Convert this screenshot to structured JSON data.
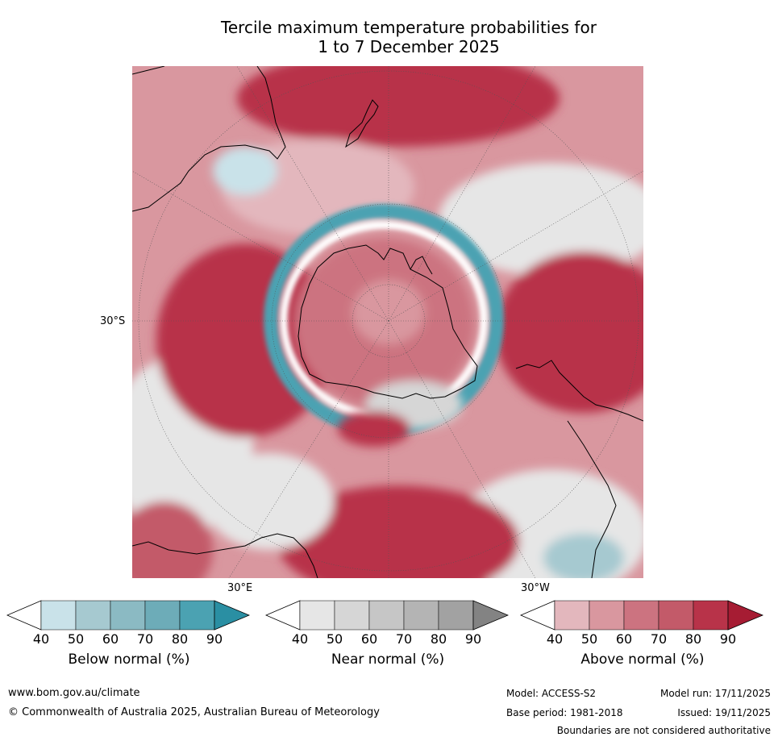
{
  "title_line1": "Tercile maximum temperature probabilities for",
  "title_line2": "1 to 7 December 2025",
  "map": {
    "lat_label": "30°S",
    "lon_label_east": "30°E",
    "lon_label_west": "30°W",
    "colors": {
      "below": [
        "#ffffff",
        "#c9e2e9",
        "#a6c9d0",
        "#8bbac3",
        "#6dacb8",
        "#4ba2b2",
        "#2a8fa3"
      ],
      "near": [
        "#ffffff",
        "#e6e6e6",
        "#d6d6d6",
        "#c6c6c6",
        "#b4b4b4",
        "#a2a2a2",
        "#838383"
      ],
      "above": [
        "#ffffff",
        "#e3b7bd",
        "#d9979f",
        "#cc7380",
        "#c35a69",
        "#b83349",
        "#a61c33"
      ],
      "land_outline": "#000000"
    }
  },
  "colorbars": [
    {
      "name": "below",
      "label": "Below normal (%)",
      "ticks": [
        "40",
        "50",
        "60",
        "70",
        "80",
        "90"
      ],
      "colors": [
        "#ffffff",
        "#c9e2e9",
        "#a6c9d0",
        "#8bbac3",
        "#6dacb8",
        "#4ba2b2",
        "#2a8fa3"
      ]
    },
    {
      "name": "near",
      "label": "Near normal (%)",
      "ticks": [
        "40",
        "50",
        "60",
        "70",
        "80",
        "90"
      ],
      "colors": [
        "#ffffff",
        "#e6e6e6",
        "#d6d6d6",
        "#c6c6c6",
        "#b4b4b4",
        "#a2a2a2",
        "#838383"
      ]
    },
    {
      "name": "above",
      "label": "Above normal (%)",
      "ticks": [
        "40",
        "50",
        "60",
        "70",
        "80",
        "90"
      ],
      "colors": [
        "#ffffff",
        "#e3b7bd",
        "#d9979f",
        "#cc7380",
        "#c35a69",
        "#b83349",
        "#a61c33"
      ]
    }
  ],
  "footer": {
    "website": "www.bom.gov.au/climate",
    "copyright": "© Commonwealth of Australia 2025, Australian Bureau of Meteorology",
    "model": "Model: ACCESS-S2",
    "base_period": "Base period: 1981-2018",
    "model_run": "Model run: 17/11/2025",
    "issued": "Issued: 19/11/2025",
    "disclaimer": "Boundaries are not considered authoritative"
  }
}
